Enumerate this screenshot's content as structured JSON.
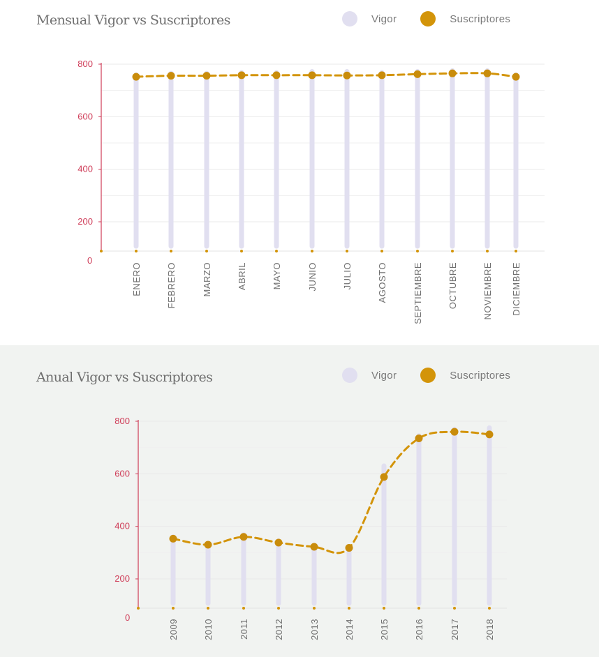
{
  "charts": [
    {
      "title": "Mensual Vigor vs Suscriptores",
      "legend": [
        {
          "label": "Vigor",
          "color": "#e1dff0"
        },
        {
          "label": "Suscriptores",
          "color": "#d39409"
        }
      ]
    },
    {
      "title": "Anual Vigor vs Suscriptores",
      "legend": [
        {
          "label": "Vigor",
          "color": "#e1dff0"
        },
        {
          "label": "Suscriptores",
          "color": "#d39409"
        }
      ]
    }
  ],
  "chart_data": [
    {
      "type": "bar",
      "title": "Mensual Vigor vs Suscriptores",
      "categories": [
        "ENERO",
        "FEBRERO",
        "MARZO",
        "ABRIL",
        "MAYO",
        "JUNIO",
        "JULIO",
        "AGOSTO",
        "SEPTIEMBRE",
        "OCTUBRE",
        "NOVIEMBRE",
        "DICIEMBRE"
      ],
      "y_ticks": [
        0,
        200,
        400,
        600,
        800
      ],
      "ylim": [
        0,
        800
      ],
      "grid": true,
      "legend_position": "top-right",
      "series": [
        {
          "name": "Vigor",
          "type": "bar",
          "color": "#e1dff0",
          "values": [
            760,
            765,
            765,
            768,
            768,
            772,
            772,
            768,
            772,
            775,
            775,
            760
          ]
        },
        {
          "name": "Suscriptores",
          "type": "line",
          "style": "dashed",
          "color": "#d39409",
          "values": [
            752,
            756,
            756,
            758,
            758,
            758,
            757,
            758,
            762,
            765,
            765,
            752
          ]
        }
      ]
    },
    {
      "type": "bar",
      "title": "Anual Vigor vs Suscriptores",
      "categories": [
        "2009",
        "2010",
        "2011",
        "2012",
        "2013",
        "2014",
        "2015",
        "2016",
        "2017",
        "2018"
      ],
      "y_ticks": [
        0,
        200,
        400,
        600,
        800
      ],
      "ylim": [
        0,
        800
      ],
      "grid": true,
      "legend_position": "top-right",
      "series": [
        {
          "name": "Vigor",
          "type": "bar",
          "color": "#e1dff0",
          "values": [
            360,
            335,
            368,
            345,
            328,
            322,
            630,
            745,
            770,
            775
          ]
        },
        {
          "name": "Suscriptores",
          "type": "line",
          "style": "dashed",
          "color": "#d39409",
          "values": [
            353,
            330,
            360,
            338,
            322,
            318,
            588,
            735,
            760,
            750
          ]
        }
      ]
    }
  ]
}
